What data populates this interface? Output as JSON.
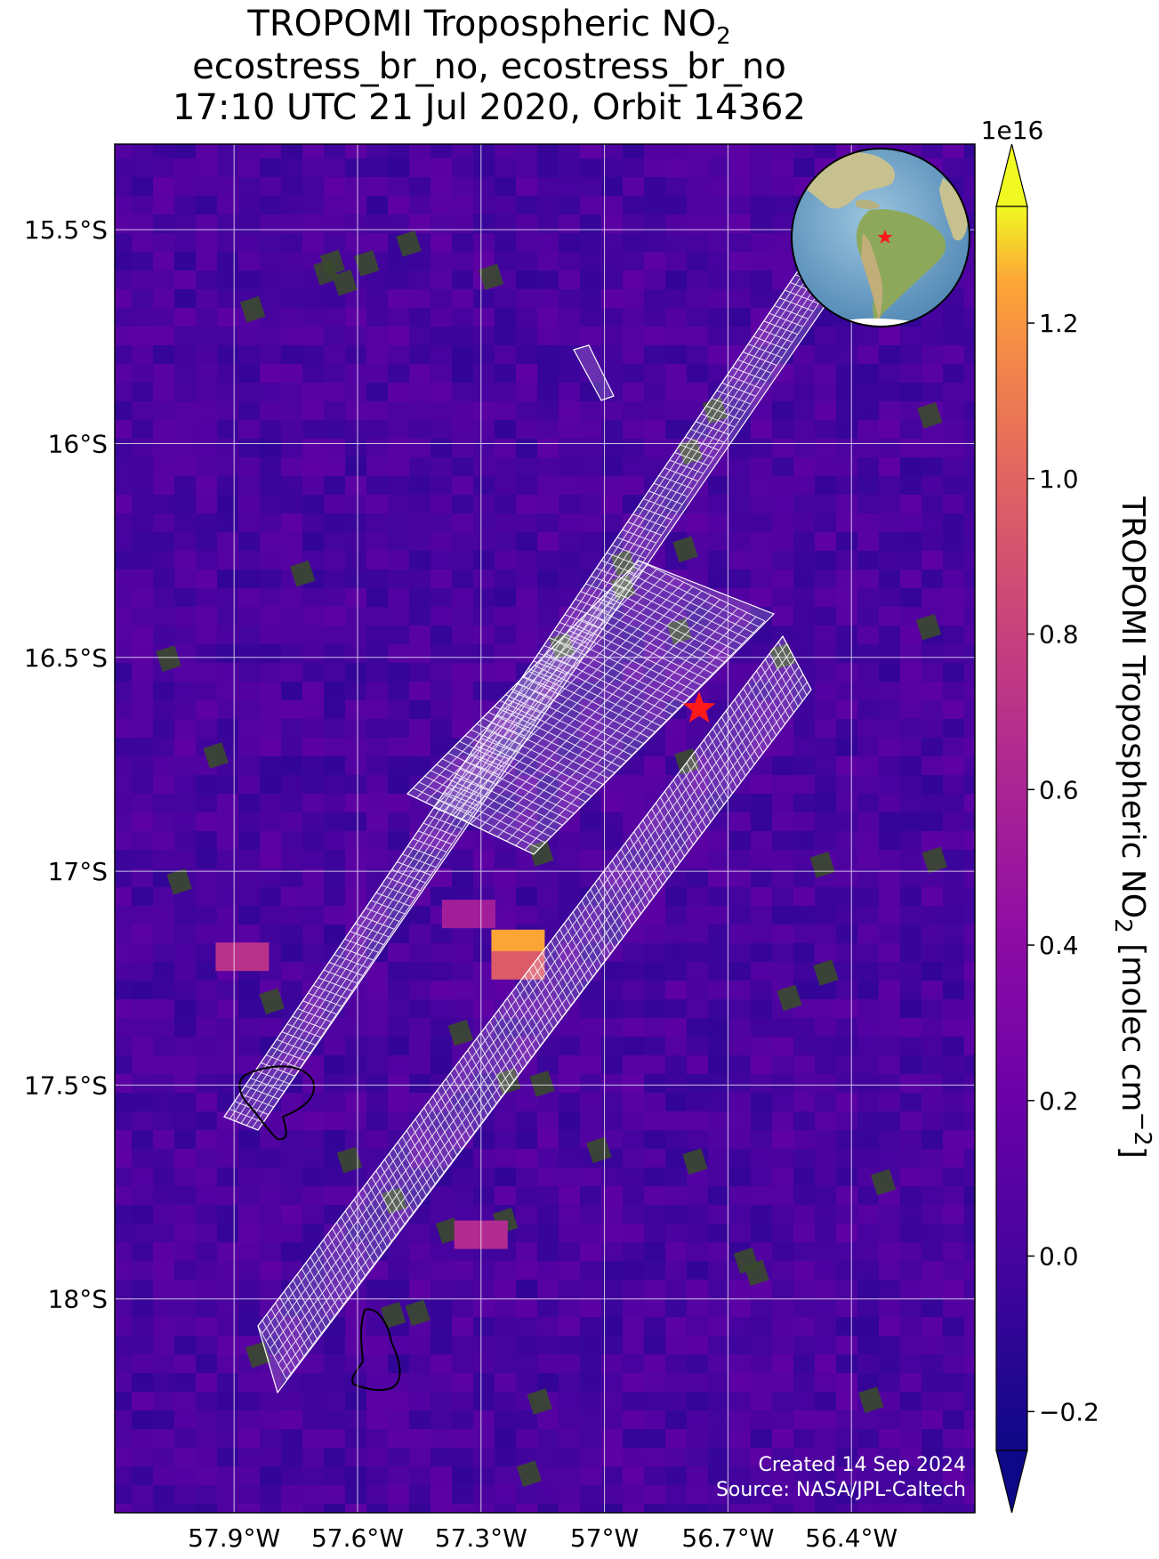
{
  "title": {
    "line1_main": "TROPOMI Tropospheric NO",
    "line1_sub": "2",
    "line2": "ecostress_br_no, ecostress_br_no",
    "line3": "17:10 UTC 21 Jul 2020, Orbit 14362"
  },
  "map": {
    "lon_ticks": [
      "57.9°W",
      "57.6°W",
      "57.3°W",
      "57°W",
      "56.7°W",
      "56.4°W"
    ],
    "lat_ticks": [
      "15.5°S",
      "16°S",
      "16.5°S",
      "17°S",
      "17.5°S",
      "18°S"
    ],
    "lon_values": [
      -57.9,
      -57.6,
      -57.3,
      -57.0,
      -56.7,
      -56.4
    ],
    "lat_values": [
      -15.5,
      -16.0,
      -16.5,
      -17.0,
      -17.5,
      -18.0
    ],
    "lon_range": [
      -58.19,
      -56.1
    ],
    "lat_range": [
      -15.3,
      -18.5
    ],
    "site_marker": {
      "lon": -56.77,
      "lat": -16.62,
      "color": "#ff1a1a",
      "shape": "star"
    },
    "background_color": "#7a1aa8",
    "credit_line1": "Created 14 Sep 2024",
    "credit_line2": "Source: NASA/JPL-Caltech"
  },
  "colorbar": {
    "label_main": "TROPOMI Tropospheric NO",
    "label_sub": "2",
    "label_units": " [molec cm",
    "label_exp": "−2",
    "label_close": "]",
    "scale_exponent": "1e16",
    "ticks": [
      "−0.2",
      "0.0",
      "0.2",
      "0.4",
      "0.6",
      "0.8",
      "1.0",
      "1.2"
    ],
    "tick_values": [
      -0.2,
      0.0,
      0.2,
      0.4,
      0.6,
      0.8,
      1.0,
      1.2
    ],
    "range": [
      -0.25,
      1.35
    ],
    "colormap": "plasma",
    "extend": "both"
  },
  "chart_data": {
    "type": "heatmap",
    "colormap": "plasma",
    "vmin": -0.25,
    "vmax": 1.35,
    "units_scale": "1e16",
    "hotspots": [
      {
        "lon": -57.21,
        "lat": -17.17,
        "value": 1.25
      },
      {
        "lon": -57.21,
        "lat": -17.22,
        "value": 0.95
      },
      {
        "lon": -57.33,
        "lat": -17.1,
        "value": 0.55
      },
      {
        "lon": -57.88,
        "lat": -17.2,
        "value": 0.7
      },
      {
        "lon": -57.3,
        "lat": -17.85,
        "value": 0.65
      }
    ]
  }
}
